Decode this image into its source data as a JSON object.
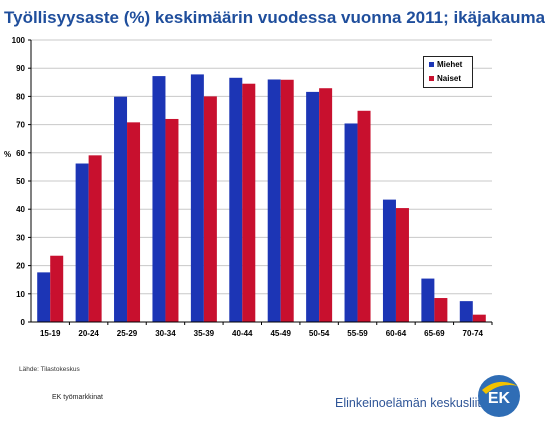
{
  "title": "Työllisyysaste (%) keskimäärin vuodessa vuonna 2011; ikäjakauma",
  "source": "Lähde: Tilastokeskus",
  "footer_left": "EK työmarkkinat",
  "org_name": "Elinkeinoelämän keskusliitto",
  "logo_text": "EK",
  "colors": {
    "miehet": "#1c35b5",
    "naiset": "#c8102e",
    "title": "#1f4e9c",
    "logo_blue": "#2f6db5",
    "logo_yellow": "#f2c200"
  },
  "chart_data": {
    "type": "bar",
    "title": "Työllisyysaste (%) keskimäärin vuodessa vuonna 2011; ikäjakauma",
    "xlabel": "",
    "ylabel": "%",
    "ylim": [
      0,
      100
    ],
    "yticks": [
      0,
      10,
      20,
      30,
      40,
      50,
      60,
      70,
      80,
      90,
      100
    ],
    "grid": true,
    "legend_position": "top-right",
    "categories": [
      "15-19",
      "20-24",
      "25-29",
      "30-34",
      "35-39",
      "40-44",
      "45-49",
      "50-54",
      "55-59",
      "60-64",
      "65-69",
      "70-74"
    ],
    "series": [
      {
        "name": "Miehet",
        "color": "#1c35b5",
        "values": [
          17.6,
          56.2,
          79.9,
          87.2,
          87.8,
          86.6,
          86.0,
          81.6,
          70.4,
          43.4,
          15.4,
          7.4
        ]
      },
      {
        "name": "Naiset",
        "color": "#c8102e",
        "values": [
          23.5,
          59.1,
          70.8,
          72.0,
          80.0,
          84.5,
          85.9,
          82.9,
          74.9,
          40.4,
          8.5,
          2.6
        ]
      }
    ]
  }
}
